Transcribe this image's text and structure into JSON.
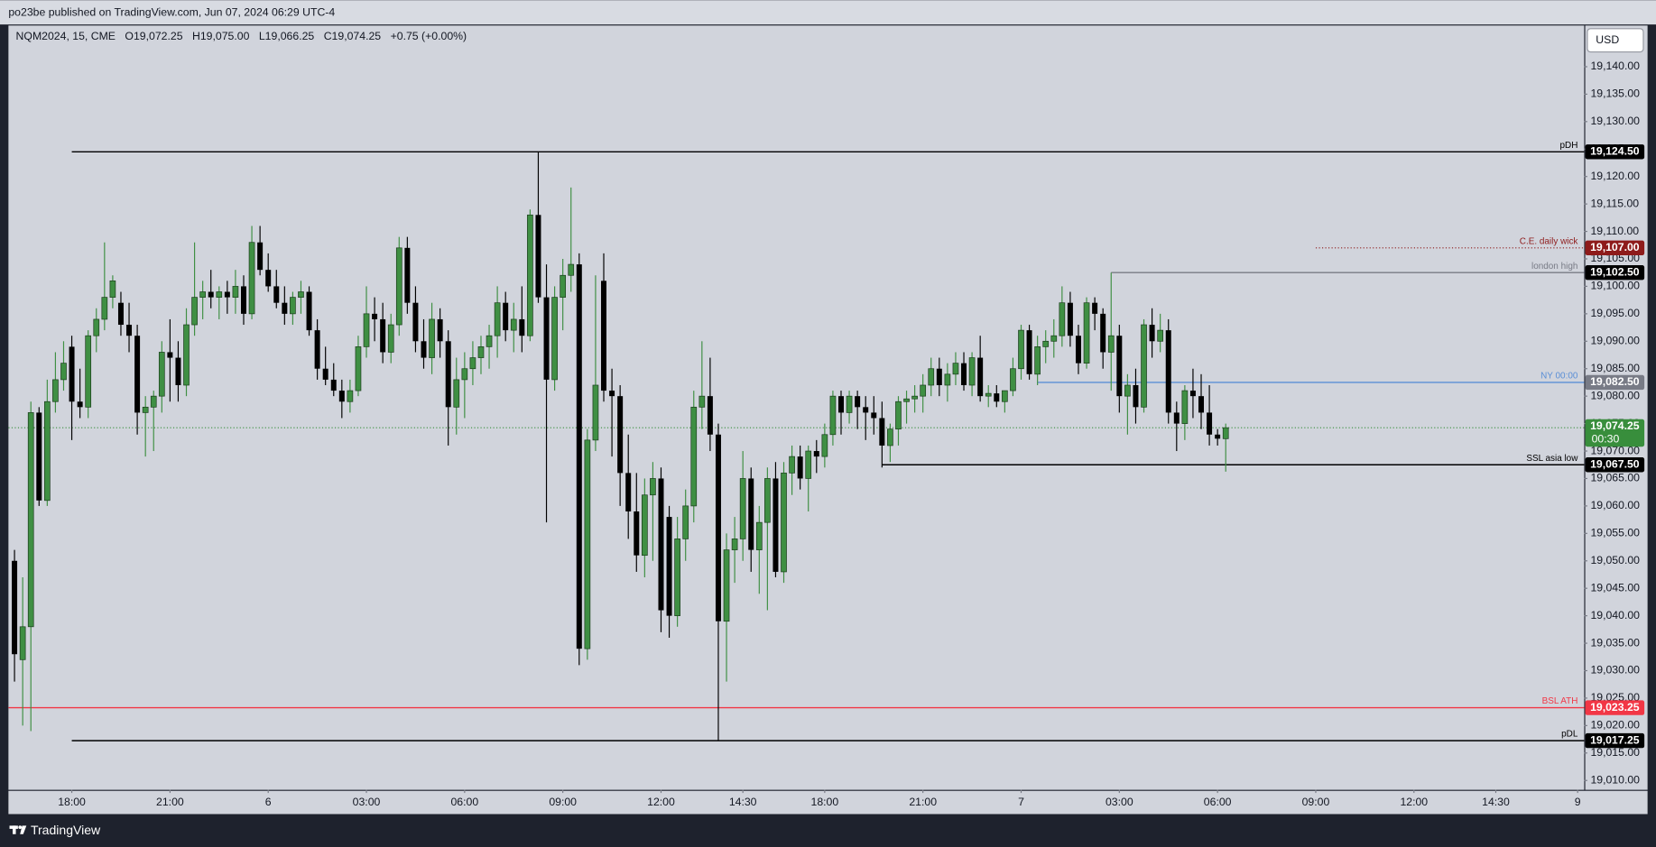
{
  "header": {
    "publisher": "po23be published on TradingView.com, Jun 07, 2024 06:29 UTC-4"
  },
  "footer": {
    "brand": "TradingView"
  },
  "chart_data": {
    "type": "candlestick",
    "symbol": "NQM2024, 15, CME",
    "stats": [
      "O19,072.25",
      "H19,075.00",
      "L19,066.25",
      "C19,074.25",
      "+0.75 (+0.00%)"
    ],
    "currency": "USD",
    "up_color": "#3f8f43",
    "down_color": "#000000",
    "grid": false,
    "xlim": [
      -7.74,
      184.8
    ],
    "ylim": [
      19008.3,
      19147.5
    ],
    "xticks": [
      {
        "value": 0,
        "label": "18:00"
      },
      {
        "value": 12,
        "label": "21:00"
      },
      {
        "value": 24,
        "label": "6"
      },
      {
        "value": 36,
        "label": "03:00"
      },
      {
        "value": 48,
        "label": "06:00"
      },
      {
        "value": 60,
        "label": "09:00"
      },
      {
        "value": 72,
        "label": "12:00"
      },
      {
        "value": 82,
        "label": "14:30"
      },
      {
        "value": 92,
        "label": "18:00"
      },
      {
        "value": 104,
        "label": "21:00"
      },
      {
        "value": 116,
        "label": "7"
      },
      {
        "value": 128,
        "label": "03:00"
      },
      {
        "value": 140,
        "label": "06:00"
      },
      {
        "value": 152,
        "label": "09:00"
      },
      {
        "value": 164,
        "label": "12:00"
      },
      {
        "value": 174,
        "label": "14:30"
      },
      {
        "value": 184,
        "label": "9"
      }
    ],
    "yticks": [
      {
        "value": 19010,
        "label": "19,010.00"
      },
      {
        "value": 19015,
        "label": "19,015.00"
      },
      {
        "value": 19020,
        "label": "19,020.00"
      },
      {
        "value": 19025,
        "label": "19,025.00"
      },
      {
        "value": 19030,
        "label": "19,030.00"
      },
      {
        "value": 19035,
        "label": "19,035.00"
      },
      {
        "value": 19040,
        "label": "19,040.00"
      },
      {
        "value": 19045,
        "label": "19,045.00"
      },
      {
        "value": 19050,
        "label": "19,050.00"
      },
      {
        "value": 19055,
        "label": "19,055.00"
      },
      {
        "value": 19060,
        "label": "19,060.00"
      },
      {
        "value": 19065,
        "label": "19,065.00"
      },
      {
        "value": 19070,
        "label": "19,070.00"
      },
      {
        "value": 19075,
        "label": "19,075.00"
      },
      {
        "value": 19080,
        "label": "19,080.00"
      },
      {
        "value": 19085,
        "label": "19,085.00"
      },
      {
        "value": 19090,
        "label": "19,090.00"
      },
      {
        "value": 19095,
        "label": "19,095.00"
      },
      {
        "value": 19100,
        "label": "19,100.00"
      },
      {
        "value": 19105,
        "label": "19,105.00"
      },
      {
        "value": 19110,
        "label": "19,110.00"
      },
      {
        "value": 19115,
        "label": "19,115.00"
      },
      {
        "value": 19120,
        "label": "19,120.00"
      },
      {
        "value": 19125,
        "label": "19,125.00"
      },
      {
        "value": 19130,
        "label": "19,130.00"
      },
      {
        "value": 19135,
        "label": "19,135.00"
      },
      {
        "value": 19140,
        "label": "19,140.00"
      }
    ],
    "x": [
      -7,
      -6,
      -5,
      -4,
      -3,
      -2,
      -1,
      0,
      1,
      2,
      3,
      4,
      5,
      6,
      7,
      8,
      9,
      10,
      11,
      12,
      13,
      14,
      15,
      16,
      17,
      18,
      19,
      20,
      21,
      22,
      23,
      24,
      25,
      26,
      27,
      28,
      29,
      30,
      31,
      32,
      33,
      34,
      35,
      36,
      37,
      38,
      39,
      40,
      41,
      42,
      43,
      44,
      45,
      46,
      47,
      48,
      49,
      50,
      51,
      52,
      53,
      54,
      55,
      56,
      57,
      58,
      59,
      60,
      61,
      62,
      63,
      64,
      65,
      66,
      67,
      68,
      69,
      70,
      71,
      72,
      73,
      74,
      75,
      76,
      77,
      78,
      79,
      80,
      81,
      82,
      83,
      84,
      85,
      86,
      87,
      88,
      89,
      90,
      91,
      92,
      93,
      94,
      95,
      96,
      97,
      98,
      99,
      100,
      101,
      102,
      103,
      104,
      105,
      106,
      107,
      108,
      109,
      110,
      111,
      112,
      113,
      114,
      115,
      116,
      117,
      118,
      119,
      120,
      121,
      122,
      123,
      124,
      125,
      126,
      127,
      128,
      129,
      130,
      131,
      132,
      133,
      134,
      135,
      136,
      137,
      138,
      139,
      140,
      141
    ],
    "open": [
      19050,
      19032,
      19038,
      19077,
      19061,
      19079,
      19083,
      19089,
      19079,
      19078,
      19091,
      19094,
      19098,
      19097,
      19093,
      19091,
      19077,
      19078,
      19080,
      19088,
      19087,
      19082,
      19093,
      19098,
      19099,
      19098,
      19099,
      19098,
      19100,
      19095,
      19108,
      19103,
      19100,
      19097,
      19095,
      19098,
      19099,
      19092,
      19085,
      19083,
      19081,
      19079,
      19081,
      19089,
      19095,
      19094,
      19088,
      19093,
      19107,
      19097,
      19090,
      19087,
      19094,
      19090,
      19078,
      19083,
      19085,
      19087,
      19089,
      19091,
      19097,
      19092,
      19094,
      19091,
      19113,
      19098,
      19083,
      19098,
      19102,
      19104,
      19034,
      19072,
      19101,
      19081,
      19080,
      19066,
      19059,
      19051,
      19062,
      19065,
      19058,
      19040,
      19054,
      19060,
      19078,
      19080,
      19073,
      19039,
      19052,
      19054,
      19065,
      19052,
      19057,
      19065,
      19048,
      19066,
      19069,
      19065,
      19070,
      19069,
      19073,
      19080,
      19077,
      19080,
      19078,
      19077,
      19076,
      19071,
      19074,
      19079,
      19079.5,
      19080,
      19082,
      19085,
      19082,
      19084,
      19086,
      19082,
      19087,
      19080,
      19080.5,
      19079,
      19081,
      19085,
      19092,
      19084,
      19089,
      19090,
      19091,
      19097,
      19091,
      19086,
      19097,
      19095,
      19088,
      19091,
      19080,
      19082,
      19078,
      19093,
      19090,
      19092,
      19077,
      19075,
      19081,
      19080,
      19077,
      19073,
      19072.25
    ],
    "high": [
      19052,
      19047,
      19079,
      19078,
      19083,
      19088,
      19090,
      19091,
      19085,
      19092,
      19096,
      19108,
      19102,
      19099,
      19097,
      19093,
      19080,
      19081,
      19090,
      19094,
      19090,
      19096,
      19108,
      19101,
      19103,
      19100,
      19101,
      19103,
      19102,
      19111,
      19111,
      19106,
      19103,
      19100,
      19099,
      19101,
      19100,
      19094,
      19089,
      19086,
      19083,
      19083,
      19091,
      19100,
      19098,
      19097,
      19095,
      19109,
      19109,
      19100,
      19094,
      19097,
      19096,
      19092,
      19087,
      19088,
      19090,
      19091,
      19093,
      19100,
      19099,
      19097,
      19100,
      19114,
      19124.5,
      19104,
      19100,
      19105,
      19118,
      19106,
      19074,
      19102,
      19106,
      19085,
      19082,
      19073,
      19066,
      19065,
      19068,
      19067,
      19060,
      19058,
      19063,
      19081,
      19090,
      19087,
      19075,
      19055,
      19058,
      19070,
      19067,
      19060,
      19067,
      19068,
      19068,
      19071,
      19071,
      19071,
      19072,
      19075,
      19081,
      19081,
      19081,
      19081,
      19080,
      19080,
      19079,
      19075,
      19080,
      19081,
      19082,
      19084,
      19087,
      19087,
      19086,
      19088,
      19088,
      19088,
      19091,
      19082,
      19082,
      19081,
      19087,
      19093,
      19093,
      19091,
      19092,
      19094,
      19100,
      19099,
      19093,
      19098,
      19098,
      19096,
      19102.5,
      19093,
      19084,
      19085,
      19094,
      19096,
      19095,
      19094,
      19079,
      19082,
      19085,
      19084,
      19082,
      19074,
      19075
    ],
    "low": [
      19028,
      19020,
      19019,
      19060,
      19060,
      19077,
      19081,
      19072,
      19076,
      19076,
      19088,
      19092,
      19096,
      19091,
      19088,
      19073,
      19069,
      19070,
      19077,
      19079,
      19079,
      19080,
      19091,
      19094,
      19096,
      19094,
      19095,
      19095,
      19093,
      19094,
      19102,
      19099,
      19096,
      19093,
      19093,
      19095,
      19091,
      19083,
      19082,
      19080,
      19076,
      19077,
      19080,
      19087,
      19090,
      19086,
      19086,
      19091,
      19095,
      19088,
      19085,
      19084,
      19087,
      19071,
      19073,
      19076,
      19082,
      19084,
      19085,
      19087,
      19090,
      19088,
      19088,
      19090,
      19097,
      19057,
      19081,
      19092,
      19099,
      19031,
      19032,
      19070,
      19079,
      19069,
      19060,
      19054,
      19048,
      19047,
      19050,
      19037,
      19036,
      19038,
      19050,
      19057,
      19074,
      19070,
      19017.25,
      19028,
      19046,
      19050,
      19048,
      19044,
      19041,
      19047,
      19046,
      19062,
      19063,
      19059,
      19066,
      19067,
      19071,
      19073,
      19075,
      19074,
      19072,
      19073,
      19067,
      19068,
      19071,
      19075,
      19077,
      19077,
      19080,
      19080,
      19079,
      19082,
      19081,
      19080,
      19079,
      19078,
      19078,
      19077,
      19080,
      19083,
      19083,
      19082,
      19086,
      19087,
      19089,
      19089,
      19084,
      19085,
      19092,
      19085,
      19081,
      19077,
      19073,
      19075,
      19077,
      19087,
      19088,
      19075,
      19070,
      19072,
      19076,
      19074,
      19071,
      19071,
      19066.25
    ],
    "close": [
      19033,
      19038,
      19077,
      19061,
      19079,
      19083,
      19086,
      19079,
      19078,
      19091,
      19094,
      19098,
      19101,
      19093,
      19091,
      19077,
      19078,
      19080,
      19088,
      19087,
      19082,
      19093,
      19098,
      19099,
      19098,
      19099,
      19098,
      19100,
      19095,
      19108,
      19103,
      19100,
      19097,
      19095,
      19098,
      19099,
      19092,
      19085,
      19083,
      19081,
      19079,
      19081,
      19089,
      19095,
      19094,
      19088,
      19093,
      19107,
      19097,
      19090,
      19087,
      19094,
      19090,
      19078,
      19083,
      19085,
      19087,
      19089,
      19091,
      19097,
      19092,
      19094,
      19091,
      19113,
      19098,
      19083,
      19098,
      19102,
      19104,
      19034,
      19072,
      19082,
      19081,
      19080,
      19066,
      19059,
      19051,
      19062,
      19065,
      19041,
      19040,
      19054,
      19060,
      19078,
      19080,
      19073,
      19039,
      19052,
      19054,
      19065,
      19052,
      19057,
      19065,
      19048,
      19066,
      19069,
      19065,
      19070,
      19069,
      19073,
      19080,
      19077,
      19080,
      19078,
      19077,
      19076,
      19071,
      19074,
      19079,
      19079.5,
      19080,
      19082,
      19085,
      19082,
      19084,
      19086,
      19082,
      19087,
      19080,
      19080.5,
      19079,
      19081,
      19085,
      19092,
      19084,
      19089,
      19090,
      19091,
      19097,
      19091,
      19086,
      19097,
      19095,
      19088,
      19091,
      19080,
      19082,
      19078,
      19093,
      19090,
      19092,
      19077,
      19075,
      19081,
      19080,
      19077,
      19073,
      19072.25,
      19074.25
    ],
    "levels": [
      {
        "name": "pDH",
        "value": 19124.5,
        "label": "19,124.50",
        "color": "#000000",
        "tag_color": "#000000",
        "start": 0,
        "style": "solid"
      },
      {
        "name": "C.E. daily wick",
        "value": 19107,
        "label": "19,107.00",
        "color": "#8e1b1b",
        "tag_color": "#8e1b1b",
        "start": 152,
        "style": "dotted"
      },
      {
        "name": "london high",
        "value": 19102.5,
        "label": "19,102.50",
        "color": "#787b86",
        "tag_color": "#000000",
        "start": 127,
        "style": "solid"
      },
      {
        "name": "NY 00:00",
        "value": 19082.5,
        "label": "19,082.50",
        "color": "#5b8fd6",
        "tag_color": "#787b86",
        "start": 118,
        "style": "solid"
      },
      {
        "name": "SSL asia low",
        "value": 19067.5,
        "label": "19,067.50",
        "color": "#000000",
        "tag_color": "#000000",
        "start": 99,
        "style": "solid"
      },
      {
        "name": "BSL ATH",
        "value": 19023.25,
        "label": "19,023.25",
        "color": "#f23645",
        "tag_color": "#f23645",
        "style": "solid"
      },
      {
        "name": "pDL",
        "value": 19017.25,
        "label": "19,017.25",
        "color": "#000000",
        "tag_color": "#000000",
        "start": 0,
        "style": "solid"
      }
    ],
    "last": {
      "value": 19074.25,
      "label": "19,074.25",
      "countdown": "00:30",
      "color": "#388e3c"
    }
  }
}
